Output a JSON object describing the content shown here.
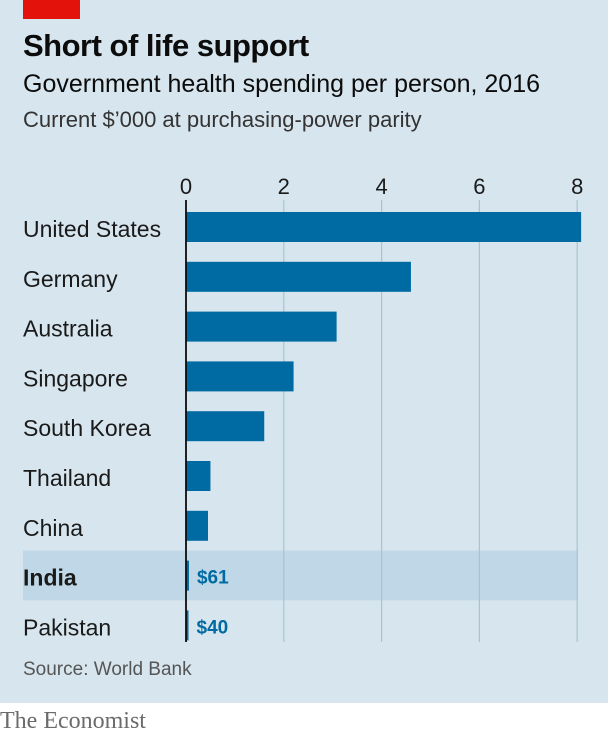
{
  "header": {
    "title": "Short of life support",
    "subtitle": "Government health spending per person, 2016",
    "unit": "Current $’000 at purchasing-power parity"
  },
  "footer": {
    "source": "Source: World Bank",
    "brand": "The Economist"
  },
  "colors": {
    "background": "#d7e5ee",
    "bar": "#006ba2",
    "highlight_row": "#bfd7e6",
    "gridline": "#a9c3d4",
    "brand_tag": "#e3120b"
  },
  "chart_data": {
    "type": "bar",
    "orientation": "horizontal",
    "categories": [
      "United States",
      "Germany",
      "Australia",
      "Singapore",
      "South Korea",
      "Thailand",
      "China",
      "India",
      "Pakistan"
    ],
    "values": [
      8.08,
      4.6,
      3.08,
      2.2,
      1.6,
      0.5,
      0.45,
      0.061,
      0.04
    ],
    "data_labels": [
      "",
      "",
      "",
      "",
      "",
      "",
      "",
      "$61",
      "$40"
    ],
    "highlight": [
      "India"
    ],
    "xticks": [
      0,
      2,
      4,
      6,
      8
    ],
    "xlim": [
      0,
      8.1
    ],
    "tick_position": "top",
    "grid": true
  }
}
